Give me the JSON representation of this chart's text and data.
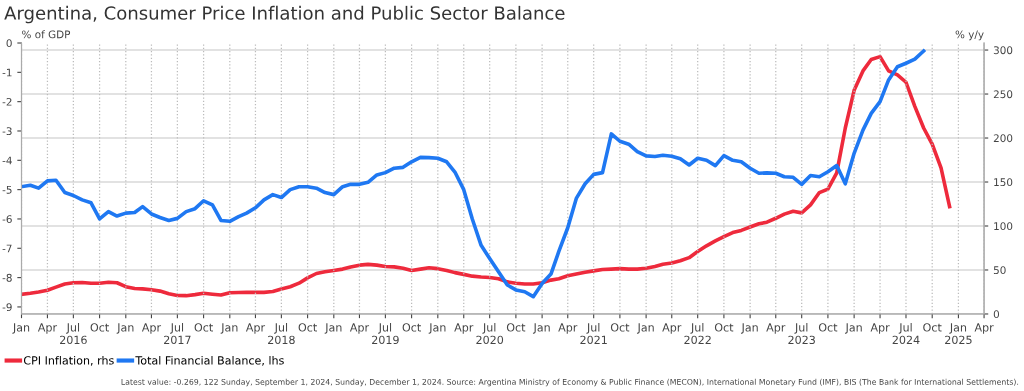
{
  "chart_data": {
    "type": "line",
    "title": "Argentina, Consumer Price Inflation and Public Sector Balance",
    "ylabel": "% of GDP",
    "y2label": "% y/y",
    "x": [
      "2016-01",
      "2016-02",
      "2016-03",
      "2016-04",
      "2016-05",
      "2016-06",
      "2016-07",
      "2016-08",
      "2016-09",
      "2016-10",
      "2016-11",
      "2016-12",
      "2017-01",
      "2017-02",
      "2017-03",
      "2017-04",
      "2017-05",
      "2017-06",
      "2017-07",
      "2017-08",
      "2017-09",
      "2017-10",
      "2017-11",
      "2017-12",
      "2018-01",
      "2018-02",
      "2018-03",
      "2018-04",
      "2018-05",
      "2018-06",
      "2018-07",
      "2018-08",
      "2018-09",
      "2018-10",
      "2018-11",
      "2018-12",
      "2019-01",
      "2019-02",
      "2019-03",
      "2019-04",
      "2019-05",
      "2019-06",
      "2019-07",
      "2019-08",
      "2019-09",
      "2019-10",
      "2019-11",
      "2019-12",
      "2020-01",
      "2020-02",
      "2020-03",
      "2020-04",
      "2020-05",
      "2020-06",
      "2020-07",
      "2020-08",
      "2020-09",
      "2020-10",
      "2020-11",
      "2020-12",
      "2021-01",
      "2021-02",
      "2021-03",
      "2021-04",
      "2021-05",
      "2021-06",
      "2021-07",
      "2021-08",
      "2021-09",
      "2021-10",
      "2021-11",
      "2021-12",
      "2022-01",
      "2022-02",
      "2022-03",
      "2022-04",
      "2022-05",
      "2022-06",
      "2022-07",
      "2022-08",
      "2022-09",
      "2022-10",
      "2022-11",
      "2022-12",
      "2023-01",
      "2023-02",
      "2023-03",
      "2023-04",
      "2023-05",
      "2023-06",
      "2023-07",
      "2023-08",
      "2023-09",
      "2023-10",
      "2023-11",
      "2023-12",
      "2024-01",
      "2024-02",
      "2024-03",
      "2024-04",
      "2024-05",
      "2024-06",
      "2024-07",
      "2024-08",
      "2024-09",
      "2024-10",
      "2024-11",
      "2024-12"
    ],
    "series": [
      {
        "name": "CPI Inflation, rhs",
        "color": "#ee2a3c",
        "axis": "y2",
        "values": [
          22.3,
          23.5,
          25,
          27,
          30.5,
          34,
          35.5,
          35.8,
          35,
          35,
          36,
          35.5,
          31,
          29,
          28.5,
          27.5,
          26,
          23,
          21,
          20.8,
          22,
          23.5,
          22.5,
          21.5,
          24.2,
          24.4,
          24.5,
          24.5,
          24.6,
          25.5,
          28.5,
          31,
          35,
          41,
          46,
          48,
          49.5,
          51,
          53.5,
          55.5,
          56.4,
          55.5,
          54,
          53.5,
          52,
          49.5,
          51,
          52.5,
          51.5,
          49.5,
          47,
          45,
          43,
          42,
          41.5,
          40,
          36.5,
          35,
          34,
          34,
          35.5,
          38.5,
          40,
          43.5,
          45.5,
          47.5,
          49,
          50.5,
          51,
          51.5,
          51,
          51,
          52,
          54,
          56.5,
          58,
          60.5,
          64,
          71,
          77.5,
          83,
          88,
          92.5,
          95,
          98.8,
          102.5,
          104.3,
          108.8,
          113.5,
          116.8,
          114.9,
          124,
          138,
          142,
          160.3,
          211.4,
          254.2,
          276.3,
          289.3,
          292.5,
          276.4,
          271.8,
          263.4,
          236,
          211.4,
          193,
          166,
          122
        ]
      },
      {
        "name": "Total Financial Balance, lhs",
        "color": "#1f78f2",
        "axis": "y",
        "values": [
          -4.9,
          -4.85,
          -4.95,
          -4.7,
          -4.68,
          -5.1,
          -5.2,
          -5.35,
          -5.45,
          -6.0,
          -5.75,
          -5.9,
          -5.8,
          -5.78,
          -5.58,
          -5.83,
          -5.95,
          -6.05,
          -5.98,
          -5.75,
          -5.65,
          -5.38,
          -5.52,
          -6.05,
          -6.08,
          -5.92,
          -5.8,
          -5.62,
          -5.35,
          -5.17,
          -5.27,
          -5.0,
          -4.9,
          -4.9,
          -4.95,
          -5.1,
          -5.17,
          -4.9,
          -4.82,
          -4.82,
          -4.75,
          -4.5,
          -4.42,
          -4.27,
          -4.24,
          -4.05,
          -3.9,
          -3.91,
          -3.93,
          -4.05,
          -4.4,
          -5.0,
          -6.0,
          -6.9,
          -7.35,
          -7.8,
          -8.25,
          -8.42,
          -8.48,
          -8.65,
          -8.2,
          -7.88,
          -7.1,
          -6.3,
          -5.3,
          -4.8,
          -4.48,
          -4.42,
          -3.1,
          -3.35,
          -3.45,
          -3.7,
          -3.85,
          -3.87,
          -3.83,
          -3.86,
          -3.95,
          -4.16,
          -3.93,
          -4.0,
          -4.18,
          -3.84,
          -4.0,
          -4.05,
          -4.27,
          -4.44,
          -4.43,
          -4.44,
          -4.56,
          -4.58,
          -4.82,
          -4.52,
          -4.56,
          -4.39,
          -4.18,
          -4.8,
          -3.76,
          -2.97,
          -2.4,
          -2.0,
          -1.26,
          -0.81,
          -0.69,
          -0.55,
          -0.27,
          null,
          null,
          null
        ]
      }
    ],
    "xlim": [
      "2016-01",
      "2025-04"
    ],
    "xticks": [
      {
        "value": "2016-01",
        "label": "Jan"
      },
      {
        "value": "2016-04",
        "label": "Apr"
      },
      {
        "value": "2016-07",
        "label": "Jul\n2016"
      },
      {
        "value": "2016-10",
        "label": "Oct"
      },
      {
        "value": "2017-01",
        "label": "Jan"
      },
      {
        "value": "2017-04",
        "label": "Apr"
      },
      {
        "value": "2017-07",
        "label": "Jul\n2017"
      },
      {
        "value": "2017-10",
        "label": "Oct"
      },
      {
        "value": "2018-01",
        "label": "Jan"
      },
      {
        "value": "2018-04",
        "label": "Apr"
      },
      {
        "value": "2018-07",
        "label": "Jul\n2018"
      },
      {
        "value": "2018-10",
        "label": "Oct"
      },
      {
        "value": "2019-01",
        "label": "Jan"
      },
      {
        "value": "2019-04",
        "label": "Apr"
      },
      {
        "value": "2019-07",
        "label": "Jul\n2019"
      },
      {
        "value": "2019-10",
        "label": "Oct"
      },
      {
        "value": "2020-01",
        "label": "Jan"
      },
      {
        "value": "2020-04",
        "label": "Apr"
      },
      {
        "value": "2020-07",
        "label": "Jul\n2020"
      },
      {
        "value": "2020-10",
        "label": "Oct"
      },
      {
        "value": "2021-01",
        "label": "Jan"
      },
      {
        "value": "2021-04",
        "label": "Apr"
      },
      {
        "value": "2021-07",
        "label": "Jul\n2021"
      },
      {
        "value": "2021-10",
        "label": "Oct"
      },
      {
        "value": "2022-01",
        "label": "Jan"
      },
      {
        "value": "2022-04",
        "label": "Apr"
      },
      {
        "value": "2022-07",
        "label": "Jul\n2022"
      },
      {
        "value": "2022-10",
        "label": "Oct"
      },
      {
        "value": "2023-01",
        "label": "Jan"
      },
      {
        "value": "2023-04",
        "label": "Apr"
      },
      {
        "value": "2023-07",
        "label": "Jul\n2023"
      },
      {
        "value": "2023-10",
        "label": "Oct"
      },
      {
        "value": "2024-01",
        "label": "Jan"
      },
      {
        "value": "2024-04",
        "label": "Apr"
      },
      {
        "value": "2024-07",
        "label": "Jul\n2024"
      },
      {
        "value": "2024-10",
        "label": "Oct"
      },
      {
        "value": "2025-01",
        "label": "Jan\n2025"
      },
      {
        "value": "2025-04",
        "label": "Apr"
      }
    ],
    "ylim": [
      -9.24,
      0
    ],
    "yticks": [
      -9,
      -8,
      -7,
      -6,
      -5,
      -4,
      -3,
      -2,
      -1,
      0
    ],
    "y2lim": [
      0,
      308
    ],
    "y2ticks": [
      0,
      50,
      100,
      150,
      200,
      250,
      300
    ],
    "grid": true,
    "legend": "bottom left",
    "marker": "none",
    "line_style": "solid",
    "annotations": [
      "Latest value: -0.269, 122 Sunday, September 1, 2024, Sunday, December 1, 2024. Source: Argentina Ministry of Economy & Public Finance (MECON), International Monetary Fund (IMF), BIS (The Bank for International Settlements)."
    ]
  }
}
